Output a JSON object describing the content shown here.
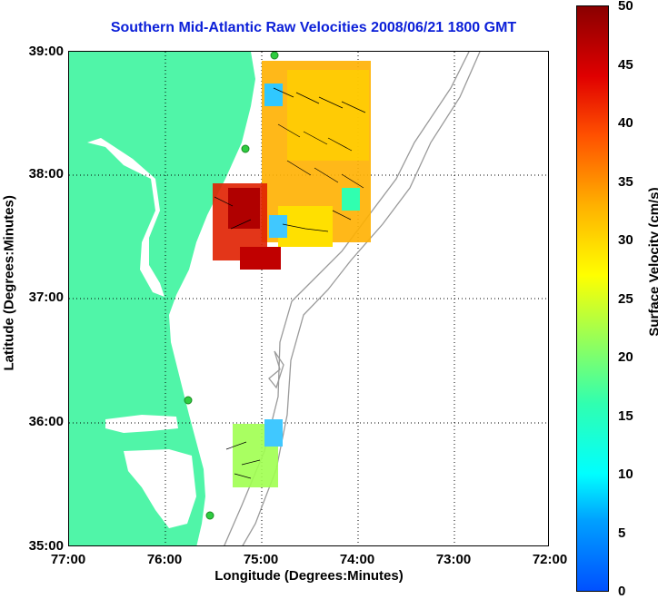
{
  "title": "Southern Mid-Atlantic Raw Velocities 2008/06/21 1800 GMT",
  "xlabel": "Longitude (Degrees:Minutes)",
  "ylabel": "Latitude (Degrees:Minutes)",
  "x_ticks": [
    "77:00",
    "76:00",
    "75:00",
    "74:00",
    "73:00",
    "72:00"
  ],
  "y_ticks": [
    "39:00",
    "38:00",
    "37:00",
    "36:00",
    "35:00"
  ],
  "colorbar": {
    "label": "Surface Velocity (cm/s)",
    "ticks": [
      "50",
      "45",
      "40",
      "35",
      "30",
      "25",
      "20",
      "15",
      "10",
      "5",
      "0"
    ],
    "range": [
      0,
      50
    ]
  },
  "colors": {
    "land": "#50f5a8",
    "title": "#0b1fd8",
    "water": "#ffffff",
    "bathymetry": "#9a9a9a",
    "stations": "#2ecc40"
  },
  "map": {
    "lon_range": [
      -77,
      -72
    ],
    "lat_range": [
      35,
      39
    ],
    "stations": [
      {
        "lon": -74.86,
        "lat": 38.96
      },
      {
        "lon": -75.15,
        "lat": 38.21
      },
      {
        "lon": -75.73,
        "lat": 36.19
      },
      {
        "lon": -75.5,
        "lat": 35.25
      }
    ]
  }
}
